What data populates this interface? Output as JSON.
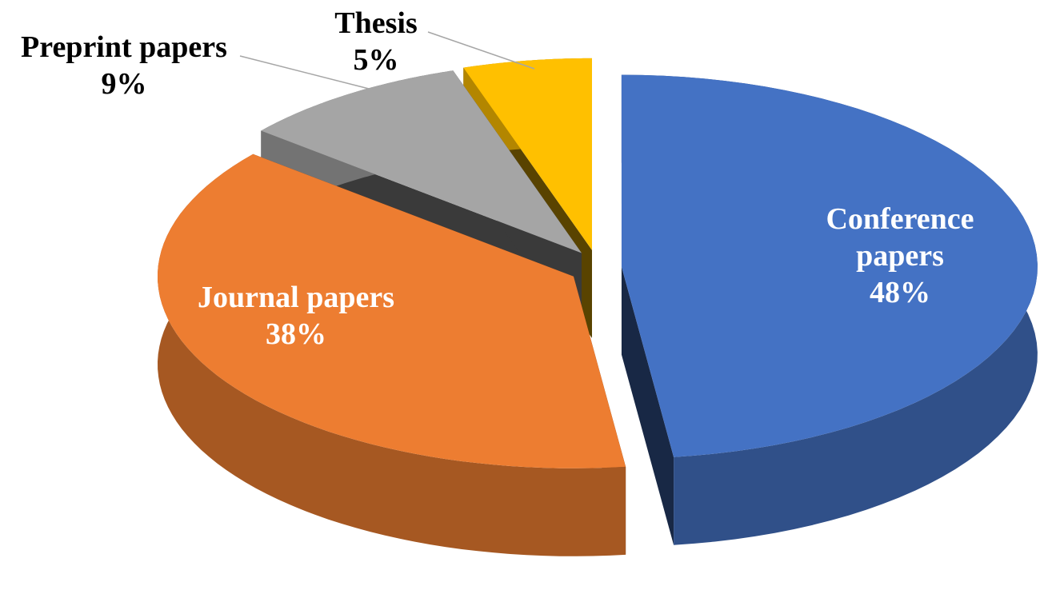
{
  "chart_data": {
    "type": "pie",
    "categories": [
      "Conference papers",
      "Journal papers",
      "Preprint papers",
      "Thesis"
    ],
    "values": [
      48,
      38,
      9,
      5
    ],
    "value_labels": [
      "48%",
      "38%",
      "9%",
      "5%"
    ],
    "colors": [
      "#4472c4",
      "#ed7d31",
      "#a5a5a5",
      "#ffc000"
    ]
  }
}
